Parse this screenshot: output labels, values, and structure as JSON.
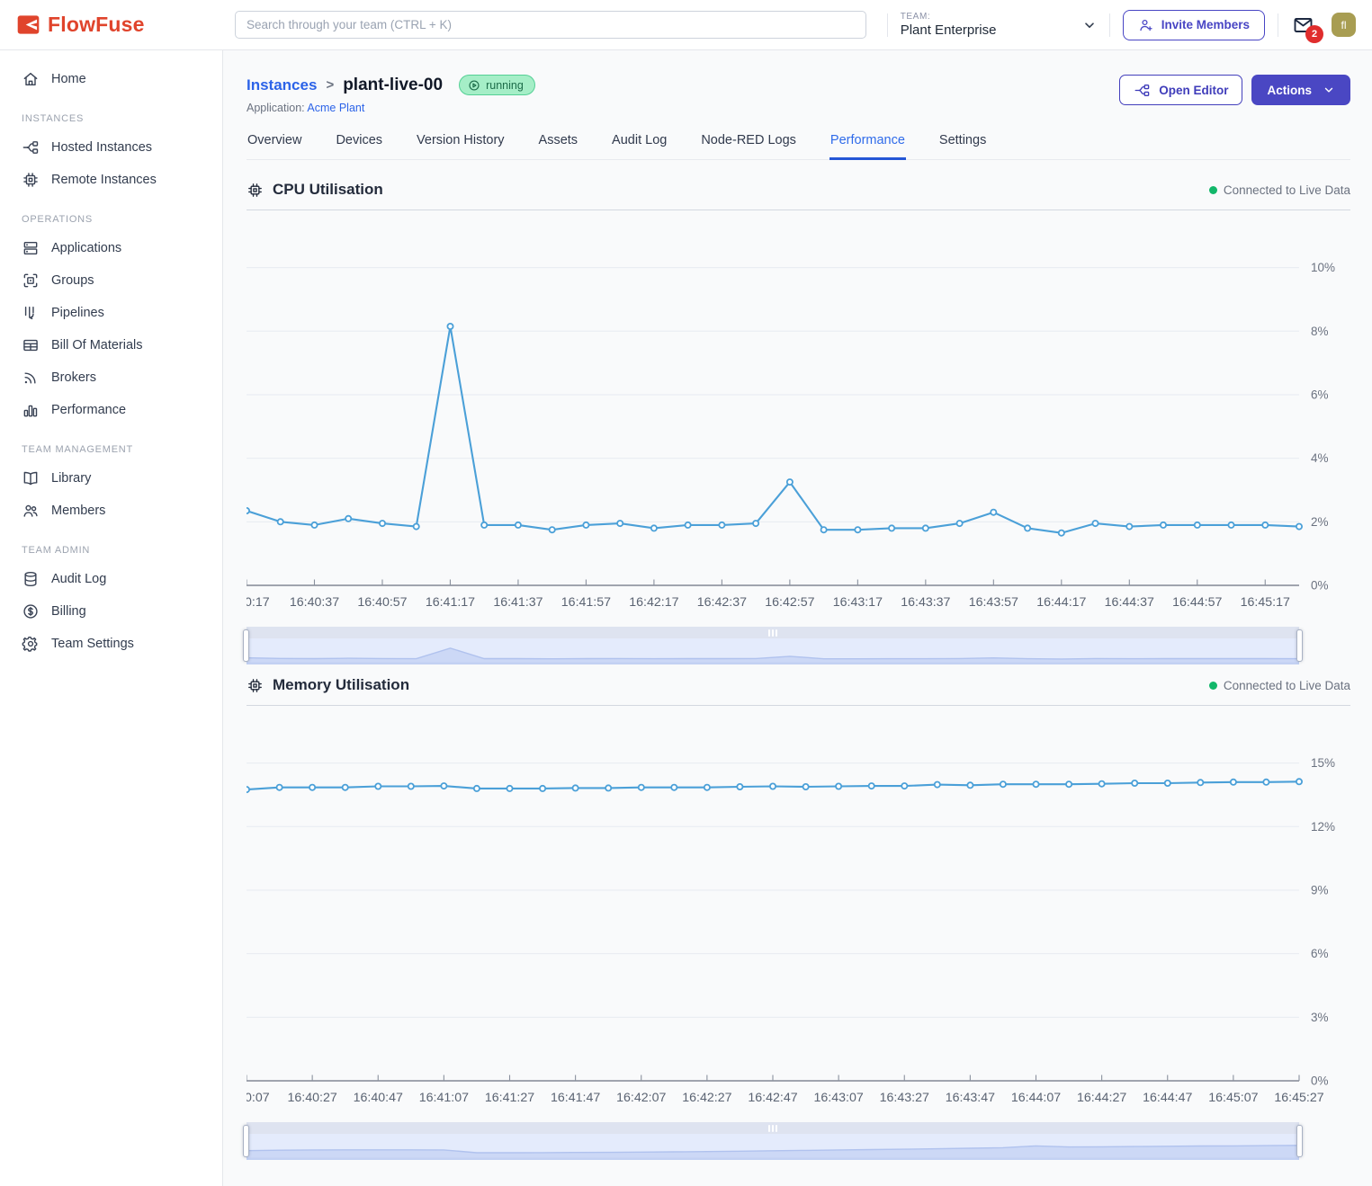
{
  "colors": {
    "brand": "#e0442c",
    "primary": "#4845c4",
    "accent_line": "#4ba0d8",
    "live_dot": "#12b76a",
    "badge_bg": "#a5eec7",
    "badge_text": "#1c6c49"
  },
  "header": {
    "brand": "FlowFuse",
    "search_placeholder": "Search through your team (CTRL + K)",
    "team_label": "TEAM:",
    "team_name": "Plant Enterprise",
    "invite_button": "Invite Members",
    "notifications_count": "2",
    "avatar_initials": "fl"
  },
  "sidebar": {
    "sections": [
      {
        "heading": "",
        "items": [
          {
            "label": "Home",
            "icon": "home-icon"
          }
        ]
      },
      {
        "heading": "INSTANCES",
        "items": [
          {
            "label": "Hosted Instances",
            "icon": "hosted-instances-icon"
          },
          {
            "label": "Remote Instances",
            "icon": "remote-instances-icon"
          }
        ]
      },
      {
        "heading": "OPERATIONS",
        "items": [
          {
            "label": "Applications",
            "icon": "applications-icon"
          },
          {
            "label": "Groups",
            "icon": "groups-icon"
          },
          {
            "label": "Pipelines",
            "icon": "pipelines-icon"
          },
          {
            "label": "Bill Of Materials",
            "icon": "bill-of-materials-icon"
          },
          {
            "label": "Brokers",
            "icon": "brokers-icon"
          },
          {
            "label": "Performance",
            "icon": "performance-icon"
          }
        ]
      },
      {
        "heading": "TEAM MANAGEMENT",
        "items": [
          {
            "label": "Library",
            "icon": "library-icon"
          },
          {
            "label": "Members",
            "icon": "members-icon"
          }
        ]
      },
      {
        "heading": "TEAM ADMIN",
        "items": [
          {
            "label": "Audit Log",
            "icon": "audit-log-icon"
          },
          {
            "label": "Billing",
            "icon": "billing-icon"
          },
          {
            "label": "Team Settings",
            "icon": "gear-icon"
          }
        ]
      }
    ]
  },
  "page": {
    "breadcrumb_parent": "Instances",
    "breadcrumb_separator": ">",
    "instance_name": "plant-live-00",
    "status_badge": "running",
    "application_label": "Application:",
    "application_name": "Acme Plant",
    "open_editor_button": "Open Editor",
    "actions_button": "Actions",
    "tabs": [
      {
        "label": "Overview",
        "active": false
      },
      {
        "label": "Devices",
        "active": false
      },
      {
        "label": "Version History",
        "active": false
      },
      {
        "label": "Assets",
        "active": false
      },
      {
        "label": "Audit Log",
        "active": false
      },
      {
        "label": "Node-RED Logs",
        "active": false
      },
      {
        "label": "Performance",
        "active": true
      },
      {
        "label": "Settings",
        "active": false
      }
    ]
  },
  "chart_data": [
    {
      "id": "cpu",
      "type": "line",
      "title": "CPU Utilisation",
      "icon": "cpu-chip-icon",
      "status_label": "Connected to Live Data",
      "unit": "%",
      "line_color": "#4ba0d8",
      "grid": true,
      "legend": false,
      "ylim": [
        0,
        11.8
      ],
      "ytick_values": [
        0,
        2,
        4,
        6,
        8,
        10
      ],
      "ytick_labels": [
        "0%",
        "2%",
        "4%",
        "6%",
        "8%",
        "10%"
      ],
      "tick_every": 2,
      "x_tick_labels": [
        "0:17",
        "16:40:37",
        "16:40:57",
        "16:41:17",
        "16:41:37",
        "16:41:57",
        "16:42:17",
        "16:42:37",
        "16:42:57",
        "16:43:17",
        "16:43:37",
        "16:43:57",
        "16:44:17",
        "16:44:37",
        "16:44:57",
        "16:45:17"
      ],
      "values": [
        2.35,
        2.0,
        1.9,
        2.1,
        1.95,
        1.85,
        8.15,
        1.9,
        1.9,
        1.75,
        1.9,
        1.95,
        1.8,
        1.9,
        1.9,
        1.95,
        3.25,
        1.75,
        1.75,
        1.8,
        1.8,
        1.95,
        2.3,
        1.8,
        1.65,
        1.95,
        1.85,
        1.9,
        1.9,
        1.9,
        1.9,
        1.85
      ]
    },
    {
      "id": "memory",
      "type": "line",
      "title": "Memory Utilisation",
      "icon": "memory-chip-icon",
      "status_label": "Connected to Live Data",
      "unit": "%",
      "line_color": "#4ba0d8",
      "grid": true,
      "legend": false,
      "ylim": [
        0,
        17.7
      ],
      "ytick_values": [
        0,
        3,
        6,
        9,
        12,
        15
      ],
      "ytick_labels": [
        "0%",
        "3%",
        "6%",
        "9%",
        "12%",
        "15%"
      ],
      "tick_every": 2,
      "x_tick_labels": [
        "0:07",
        "16:40:27",
        "16:40:47",
        "16:41:07",
        "16:41:27",
        "16:41:47",
        "16:42:07",
        "16:42:27",
        "16:42:47",
        "16:43:07",
        "16:43:27",
        "16:43:47",
        "16:44:07",
        "16:44:27",
        "16:44:47",
        "16:45:07",
        "16:45:27"
      ],
      "values": [
        13.75,
        13.85,
        13.85,
        13.85,
        13.9,
        13.9,
        13.92,
        13.8,
        13.8,
        13.8,
        13.82,
        13.82,
        13.85,
        13.85,
        13.85,
        13.88,
        13.9,
        13.88,
        13.9,
        13.92,
        13.92,
        13.98,
        13.95,
        14.0,
        14.0,
        14.0,
        14.02,
        14.05,
        14.05,
        14.08,
        14.1,
        14.1,
        14.12
      ],
      "brush_values": [
        5.0,
        5.3,
        5.5,
        5.6,
        5.6,
        5.6,
        5.5,
        3.4,
        3.4,
        3.5,
        3.6,
        3.7,
        3.9,
        4.1,
        4.3,
        4.6,
        4.9,
        5.2,
        5.5,
        5.8,
        6.1,
        6.4,
        6.8,
        7.2,
        8.6,
        7.8,
        7.9,
        8.1,
        8.3,
        8.5,
        8.6,
        8.8,
        9.0
      ],
      "brush_ylim": [
        0,
        15
      ]
    }
  ]
}
